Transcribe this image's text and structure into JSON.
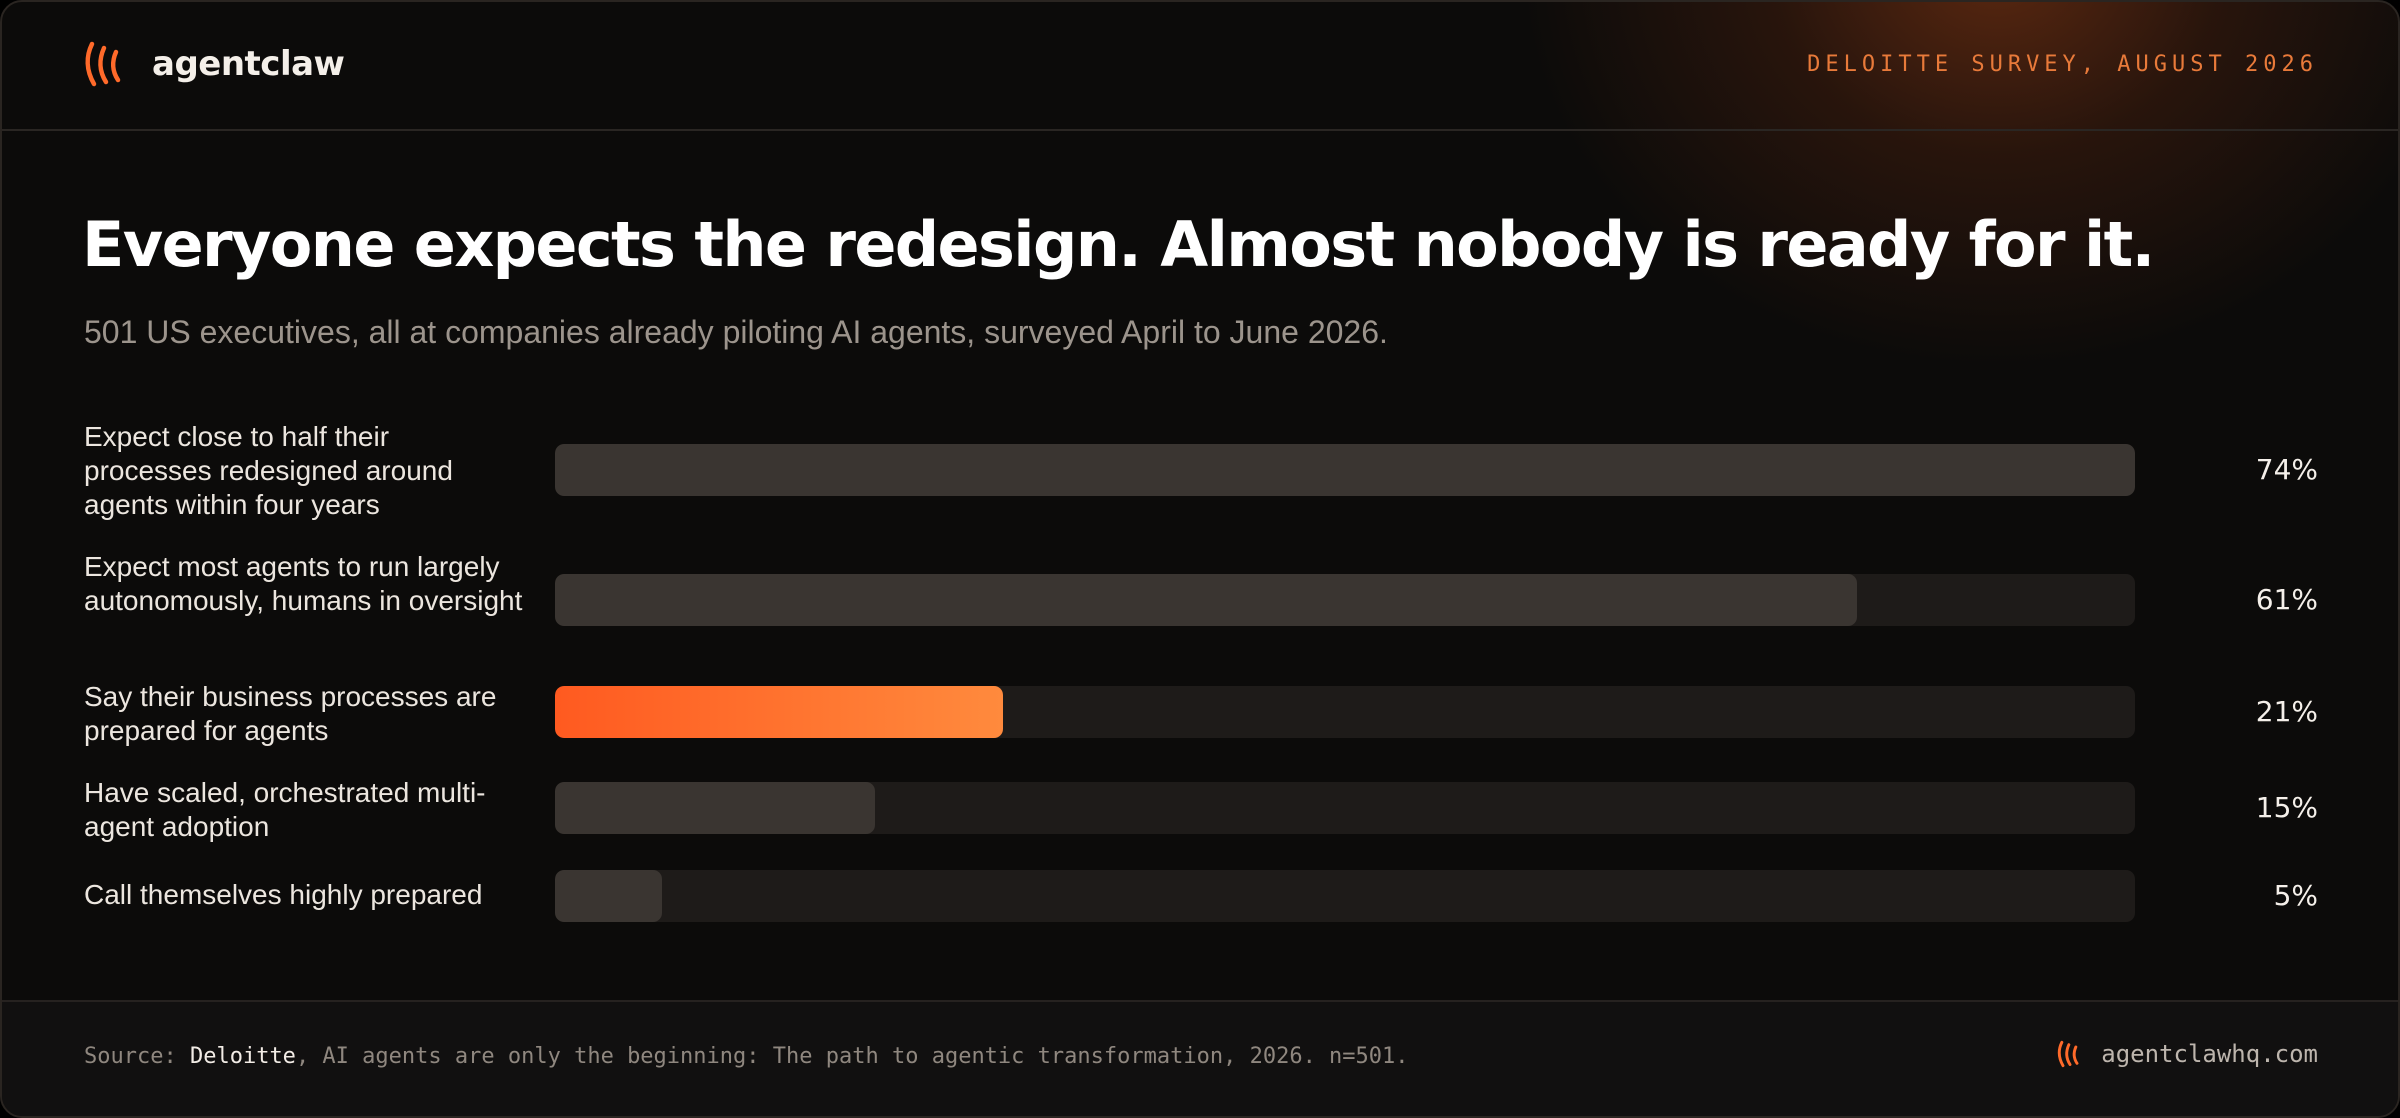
{
  "brand": {
    "name": "agentclaw",
    "logo_icon": "claw-marks-icon",
    "accent_color": "#ff6a2a"
  },
  "kicker": "DELOITTE SURVEY, AUGUST 2026",
  "headline": "Everyone expects the redesign. Almost nobody is ready for it.",
  "subtitle": "501 US executives, all at companies already piloting AI agents, surveyed April to June 2026.",
  "chart_data": {
    "type": "bar",
    "orientation": "horizontal",
    "title": "",
    "xlabel": "",
    "ylabel": "",
    "xlim": [
      0,
      74
    ],
    "grid": false,
    "categories": [
      "Expect close to half their processes redesigned around agents within four years",
      "Expect most agents to run largely autonomously, humans in oversight",
      "Say their business processes are prepared for agents",
      "Have scaled, orchestrated multi-agent adoption",
      "Call themselves highly prepared"
    ],
    "values": [
      74,
      61,
      21,
      15,
      5
    ],
    "value_labels": [
      "74%",
      "61%",
      "21%",
      "15%",
      "5%"
    ],
    "highlight_index": 2,
    "colors": {
      "bar": "#3a3531",
      "track": "#1e1b19",
      "highlight_start": "#ff5a20",
      "highlight_end": "#ff8a3d"
    }
  },
  "footer": {
    "source_prefix": "Source: ",
    "source_org": "Deloitte",
    "source_rest": ", AI agents are only the beginning: The path to agentic transformation, 2026. n=501.",
    "url": "agentclawhq.com",
    "logo_icon": "claw-marks-icon"
  }
}
